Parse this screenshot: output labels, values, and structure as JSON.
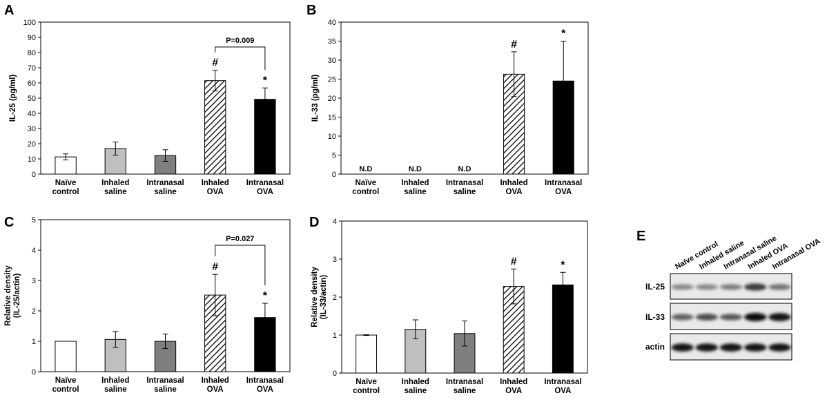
{
  "panel_letters": [
    "A",
    "B",
    "C",
    "D",
    "E"
  ],
  "chart_data": [
    {
      "panel": "A",
      "type": "bar",
      "categories": [
        [
          "Naïve",
          "control"
        ],
        [
          "Inhaled",
          "saline"
        ],
        [
          "Intranasal",
          "saline"
        ],
        [
          "Inhaled",
          "OVA"
        ],
        [
          "Intranasal",
          "OVA"
        ]
      ],
      "values": [
        11.3,
        16.8,
        12.2,
        61.5,
        49.2
      ],
      "errors": [
        2.0,
        4.3,
        3.8,
        6.8,
        7.5
      ],
      "value_labels": [
        "",
        "",
        "",
        "",
        ""
      ],
      "markers": [
        "",
        "",
        "",
        "#",
        "*"
      ],
      "ylabel": "IL-25 (pg/ml)",
      "ylim": [
        0,
        100
      ],
      "yticks": [
        "0",
        "10",
        "20",
        "30",
        "40",
        "50",
        "60",
        "70",
        "80",
        "90",
        "100"
      ],
      "bar_styles": [
        "white",
        "lightgray",
        "gray",
        "hatch",
        "black"
      ],
      "bracket": {
        "label": "P=0.009",
        "from": 3,
        "to": 4
      }
    },
    {
      "panel": "B",
      "type": "bar",
      "categories": [
        [
          "Naïve",
          "control"
        ],
        [
          "Inhaled",
          "saline"
        ],
        [
          "Intranasal",
          "saline"
        ],
        [
          "Inhaled",
          "OVA"
        ],
        [
          "Intranasal",
          "OVA"
        ]
      ],
      "values": [
        0,
        0,
        0,
        26.3,
        24.5
      ],
      "errors": [
        0,
        0,
        0,
        5.9,
        10.5
      ],
      "value_labels": [
        "N.D",
        "N.D",
        "N.D",
        "",
        ""
      ],
      "markers": [
        "",
        "",
        "",
        "#",
        "*"
      ],
      "ylabel": "IL-33 (pg/ml)",
      "ylim": [
        0,
        40
      ],
      "yticks": [
        "0",
        "5",
        "10",
        "15",
        "20",
        "25",
        "30",
        "35",
        "40"
      ],
      "bar_styles": [
        "white",
        "lightgray",
        "gray",
        "hatch",
        "black"
      ]
    },
    {
      "panel": "C",
      "type": "bar",
      "categories": [
        [
          "Naïve",
          "control"
        ],
        [
          "Inhaled",
          "saline"
        ],
        [
          "Intranasal",
          "saline"
        ],
        [
          "Inhaled",
          "OVA"
        ],
        [
          "Intranasal",
          "OVA"
        ]
      ],
      "values": [
        1.0,
        1.06,
        1.0,
        2.52,
        1.78
      ],
      "errors": [
        0,
        0.26,
        0.24,
        0.68,
        0.47
      ],
      "value_labels": [
        "",
        "",
        "",
        "",
        ""
      ],
      "markers": [
        "",
        "",
        "",
        "#",
        "*"
      ],
      "ylabel": [
        "Relative density",
        "(IL-25/actin)"
      ],
      "ylim": [
        0,
        5
      ],
      "yticks": [
        "0",
        "1",
        "2",
        "3",
        "4",
        "5"
      ],
      "bar_styles": [
        "white",
        "lightgray",
        "gray",
        "hatch",
        "black"
      ],
      "bracket": {
        "label": "P=0.027",
        "from": 3,
        "to": 4
      }
    },
    {
      "panel": "D",
      "type": "bar",
      "categories": [
        [
          "Naïve",
          "control"
        ],
        [
          "Inhaled",
          "saline"
        ],
        [
          "Intranasal",
          "saline"
        ],
        [
          "Inhaled",
          "OVA"
        ],
        [
          "Intranasal",
          "OVA"
        ]
      ],
      "values": [
        1.0,
        1.15,
        1.04,
        2.28,
        2.32
      ],
      "errors": [
        0.01,
        0.25,
        0.33,
        0.46,
        0.33
      ],
      "value_labels": [
        "",
        "",
        "",
        "",
        ""
      ],
      "markers": [
        "",
        "",
        "",
        "#",
        "*"
      ],
      "ylabel": [
        "Relative density",
        "(IL-33/actin)"
      ],
      "ylim": [
        0,
        4
      ],
      "yticks": [
        "0",
        "1",
        "2",
        "3",
        "4"
      ],
      "bar_styles": [
        "white",
        "lightgray",
        "gray",
        "hatch",
        "black"
      ]
    }
  ],
  "blot": {
    "columns": [
      "Naïve control",
      "Inhaled saline",
      "Intranasal saline",
      "Inhaled OVA",
      "Intranasal OVA"
    ],
    "rows": [
      {
        "label": "IL-25",
        "intensity": [
          0.35,
          0.35,
          0.4,
          0.75,
          0.45
        ]
      },
      {
        "label": "IL-33",
        "intensity": [
          0.55,
          0.65,
          0.6,
          1.0,
          0.95
        ]
      },
      {
        "label": "actin",
        "intensity": [
          0.95,
          0.95,
          0.95,
          0.95,
          0.95
        ]
      }
    ]
  },
  "colors": {
    "white": "#ffffff",
    "lightgray": "#bfbfbf",
    "gray": "#7f7f7f",
    "black": "#000000",
    "axis": "#000000",
    "blot_bg": "#e9e9e9"
  }
}
